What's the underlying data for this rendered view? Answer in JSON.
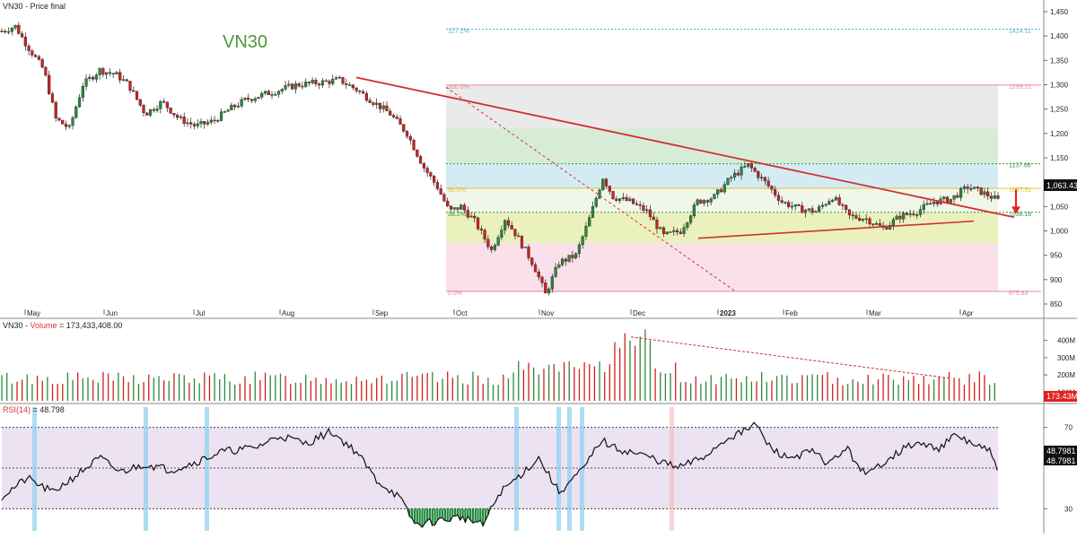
{
  "price_panel": {
    "header": "VN30 - Price final",
    "watermark": "VN30",
    "last_price_tag": "1,063.43",
    "fib_levels": [
      {
        "pct_label": "127.2%",
        "value_label": "1414.11",
        "value": 1414.11,
        "color": "#4ab4c4",
        "dashed": true
      },
      {
        "pct_label": "100.0%",
        "value_label": "1299.22",
        "value": 1299.22,
        "color": "#e88a9a",
        "dashed": false
      },
      {
        "pct_label": "",
        "value_label": "1137.86",
        "value": 1137.86,
        "color": "#2e9a4a",
        "dashed": true
      },
      {
        "pct_label": "50.0%",
        "value_label": "1087.52",
        "value": 1087.52,
        "color": "#e0c030",
        "dashed": false
      },
      {
        "pct_label": "38.2%",
        "value_label": "1038.18",
        "value": 1038.18,
        "color": "#2e9a4a",
        "dashed": true
      },
      {
        "pct_label": "0.0%",
        "value_label": "875.83",
        "value": 875.83,
        "color": "#e88a9a",
        "dashed": false
      }
    ]
  },
  "volume_panel": {
    "header_prefix": "VN30 - ",
    "header_series": "Volume",
    "header_suffix": " = 173,433,408.00",
    "last_tag": "173.43M"
  },
  "rsi_panel": {
    "header_series": "RSI(14)",
    "header_suffix": " = 48.798",
    "tag1": "48.7981",
    "tag2": "48.7981"
  },
  "chart_data": [
    {
      "type": "candlestick",
      "title": "VN30 - Price final",
      "ylim": [
        830,
        1460
      ],
      "y_ticks": [
        850,
        900,
        950,
        1000,
        1050,
        1100,
        1150,
        1200,
        1250,
        1300,
        1350,
        1400,
        1450
      ],
      "y_tick_labels": [
        "850",
        "900",
        "950",
        "1,000",
        "1,050",
        "1,100",
        "1,150",
        "1,200",
        "1,250",
        "1,300",
        "1,350",
        "1,400",
        "1,450"
      ],
      "x_labels": [
        "May",
        "Jun",
        "Jul",
        "Aug",
        "Sep",
        "Oct",
        "Nov",
        "Dec",
        "2023",
        "Feb",
        "Mar",
        "Apr"
      ],
      "period": "May 2022 – Apr 2023 (daily)",
      "key_points": [
        {
          "label": "start",
          "close": 1410
        },
        {
          "label": "May low",
          "close": 1210
        },
        {
          "label": "late Aug high",
          "close": 1310
        },
        {
          "label": "mid Nov low",
          "close": 870
        },
        {
          "label": "early Dec high",
          "close": 1115
        },
        {
          "label": "late Jan high",
          "close": 1135
        },
        {
          "label": "early Mar low",
          "close": 1005
        },
        {
          "label": "last",
          "close": 1063.43
        }
      ],
      "last_close": 1063.43,
      "trendlines": [
        {
          "name": "downtrend resistance",
          "from": {
            "x": "Aug end",
            "y": 1315
          },
          "to": {
            "x": "Apr end",
            "y": 1030
          }
        },
        {
          "name": "rising support",
          "from": {
            "x": "Dec end",
            "y": 985
          },
          "to": {
            "x": "Apr",
            "y": 1020
          }
        }
      ]
    },
    {
      "type": "bar",
      "title": "VN30 - Volume = 173,433,408.00",
      "y_tick_labels": [
        "100M",
        "200M",
        "300M",
        "400M"
      ],
      "ylim": [
        50000000,
        450000000
      ],
      "last_value": 173433408,
      "peak_value": 420000000
    },
    {
      "type": "line",
      "title": "RSI(14) = 48.798",
      "ylim": [
        20,
        80
      ],
      "y_tick_labels": [
        "30",
        "70"
      ],
      "bands": [
        30,
        50,
        70
      ],
      "last_value": 48.7981,
      "key_points": [
        {
          "label": "start",
          "value": 38
        },
        {
          "label": "late Aug",
          "value": 66
        },
        {
          "label": "mid Nov low",
          "value": 20
        },
        {
          "label": "early Dec",
          "value": 68
        },
        {
          "label": "late Jan",
          "value": 72
        },
        {
          "label": "last",
          "value": 48.8
        }
      ]
    }
  ]
}
